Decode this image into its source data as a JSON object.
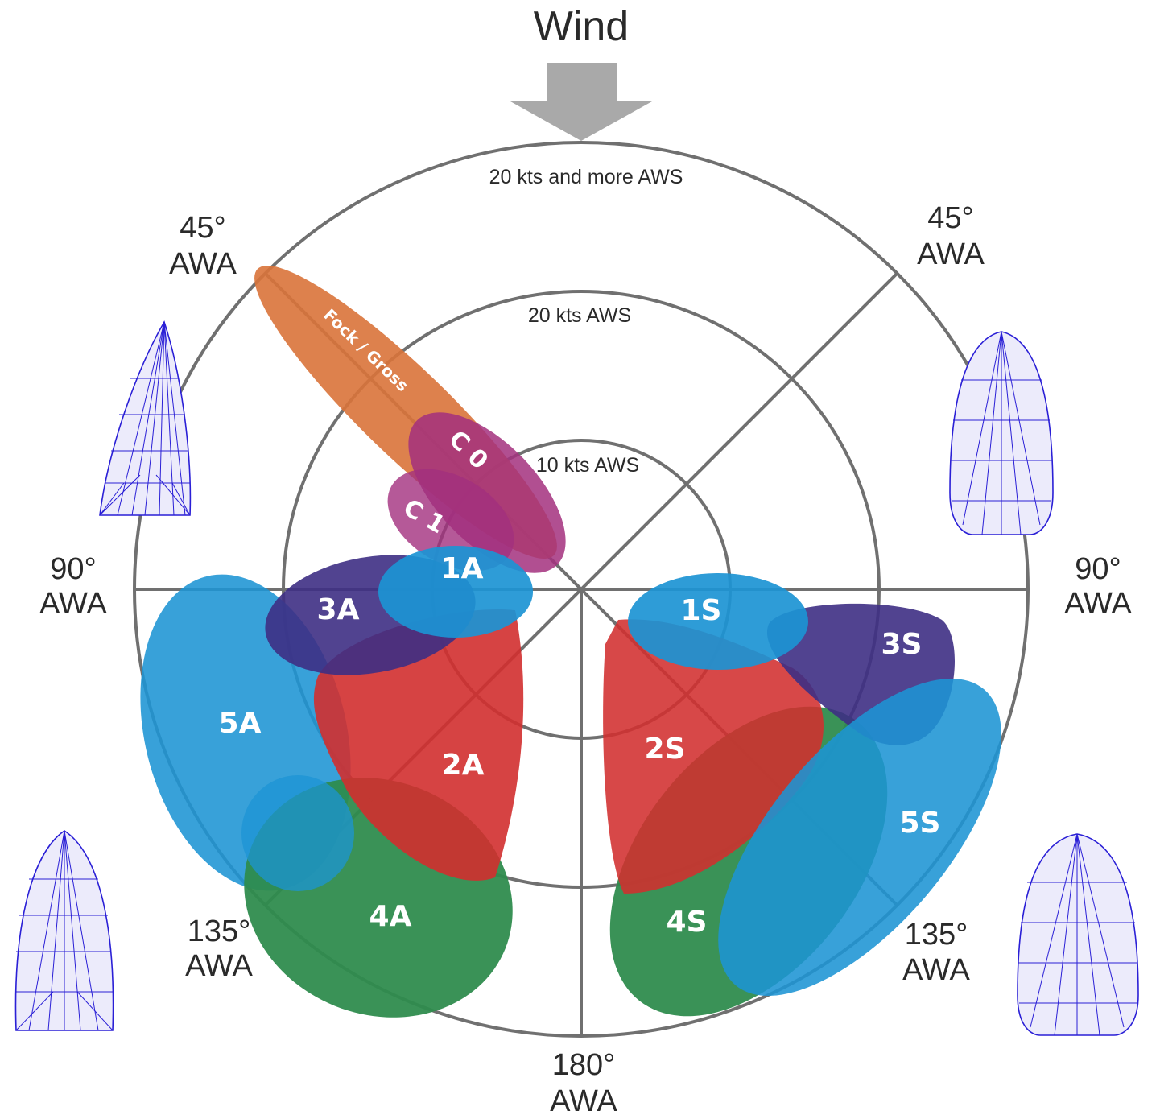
{
  "title": "Wind",
  "rings": {
    "outer": "20 kts and more AWS",
    "middle": "20 kts AWS",
    "inner": "10 kts AWS"
  },
  "angles": {
    "top_left": [
      "45°",
      "AWA"
    ],
    "top_right": [
      "45°",
      "AWA"
    ],
    "left": [
      "90°",
      "AWA"
    ],
    "right": [
      "90°",
      "AWA"
    ],
    "bottom_left": [
      "135°",
      "AWA"
    ],
    "bottom_right": [
      "135°",
      "AWA"
    ],
    "bottom": [
      "180°",
      "AWA"
    ]
  },
  "zones": {
    "fock": "Fock / Gross",
    "c0": "C 0",
    "c1": "C 1",
    "a1": "1A",
    "a2": "2A",
    "a3": "3A",
    "a4": "4A",
    "a5": "5A",
    "s1": "1S",
    "s2": "2S",
    "s3": "3S",
    "s4": "4S",
    "s5": "5S"
  },
  "colors": {
    "orange": "#d9733a",
    "magenta": "#a3307e",
    "blue": "#1c94d4",
    "navy": "#3e2f84",
    "red": "#d12f2f",
    "green": "#2e8b4c",
    "grid": "#707070",
    "arrow": "#a9a9a9",
    "sail_mesh": "#2a1fd6"
  },
  "sail_icons": [
    "asymmetric-spinnaker-icon",
    "symmetric-spinnaker-icon"
  ]
}
